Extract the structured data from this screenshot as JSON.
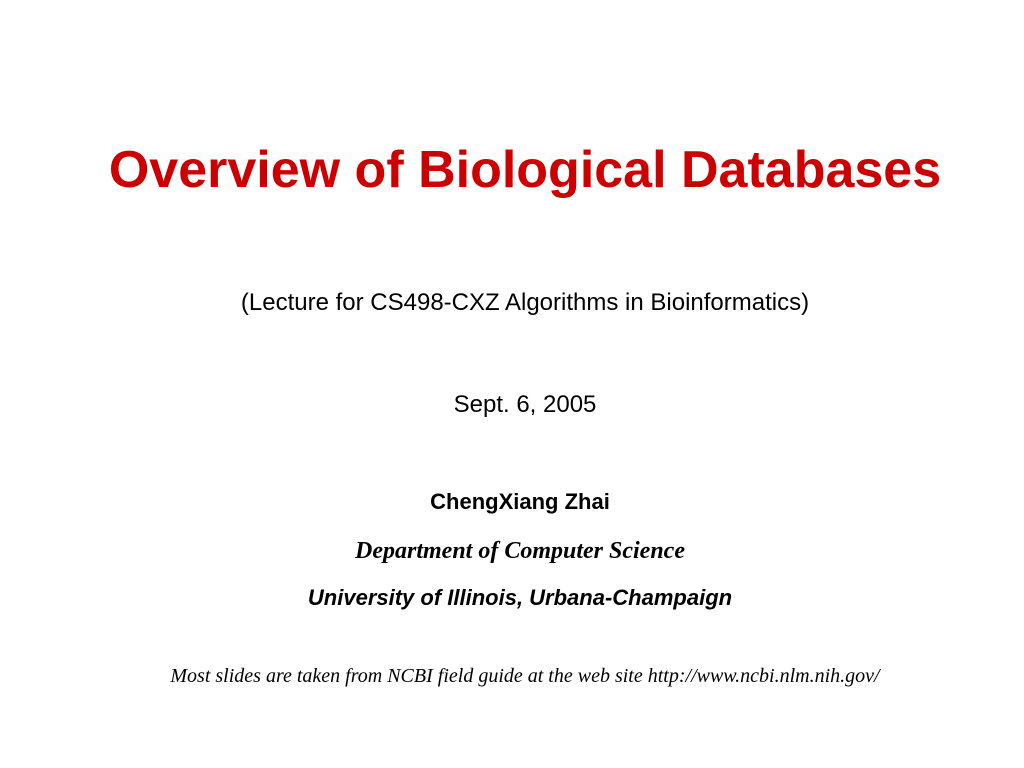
{
  "slide": {
    "title": "Overview of Biological Databases",
    "subtitle": "(Lecture for CS498-CXZ Algorithms in Bioinformatics)",
    "date": "Sept. 6, 2005",
    "author": "ChengXiang Zhai",
    "department": "Department of Computer Science",
    "university": "University of Illinois, Urbana-Champaign",
    "footer": "Most slides are taken from NCBI field guide at the web site http://www.ncbi.nlm.nih.gov/",
    "title_color": "#cc0000"
  }
}
